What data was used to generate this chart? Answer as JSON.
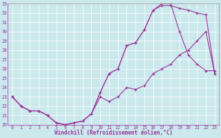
{
  "title": "",
  "xlabel": "Windchill (Refroidissement éolien,°C)",
  "ylabel": "",
  "bg_color": "#cbe8ed",
  "line_color": "#993399",
  "xlim": [
    -0.5,
    23.5
  ],
  "ylim": [
    20,
    33
  ],
  "xticks": [
    0,
    1,
    2,
    3,
    4,
    5,
    6,
    7,
    8,
    9,
    10,
    11,
    12,
    13,
    14,
    15,
    16,
    17,
    18,
    19,
    20,
    21,
    22,
    23
  ],
  "yticks": [
    20,
    21,
    22,
    23,
    24,
    25,
    26,
    27,
    28,
    29,
    30,
    31,
    32,
    33
  ],
  "line1_x": [
    0,
    1,
    2,
    3,
    4,
    5,
    6,
    7,
    8,
    9,
    10,
    11,
    12,
    13,
    14,
    15,
    16,
    17,
    18,
    19,
    20,
    21,
    22,
    23
  ],
  "line1_y": [
    23.0,
    22.0,
    21.5,
    21.5,
    21.0,
    20.2,
    20.0,
    20.2,
    20.4,
    21.2,
    23.5,
    25.5,
    26.0,
    28.5,
    28.8,
    30.2,
    32.3,
    32.8,
    32.8,
    32.5,
    32.3,
    32.0,
    31.8,
    25.5
  ],
  "line2_x": [
    0,
    1,
    2,
    3,
    4,
    5,
    6,
    7,
    8,
    9,
    10,
    11,
    12,
    13,
    14,
    15,
    16,
    17,
    18,
    19,
    20,
    21,
    22,
    23
  ],
  "line2_y": [
    23.0,
    22.0,
    21.5,
    21.5,
    21.0,
    20.2,
    20.0,
    20.2,
    20.4,
    21.2,
    23.5,
    25.5,
    26.0,
    28.5,
    28.8,
    30.2,
    32.3,
    33.0,
    33.0,
    30.0,
    27.5,
    26.5,
    25.8,
    25.8
  ],
  "line3_x": [
    0,
    1,
    2,
    3,
    4,
    5,
    6,
    7,
    8,
    9,
    10,
    11,
    12,
    13,
    14,
    15,
    16,
    17,
    18,
    19,
    20,
    21,
    22,
    23
  ],
  "line3_y": [
    23.0,
    22.0,
    21.5,
    21.5,
    21.0,
    20.2,
    20.0,
    20.2,
    20.4,
    21.2,
    23.0,
    22.5,
    23.0,
    24.0,
    23.8,
    24.2,
    25.5,
    26.0,
    26.5,
    27.5,
    28.0,
    29.0,
    30.0,
    25.5
  ]
}
